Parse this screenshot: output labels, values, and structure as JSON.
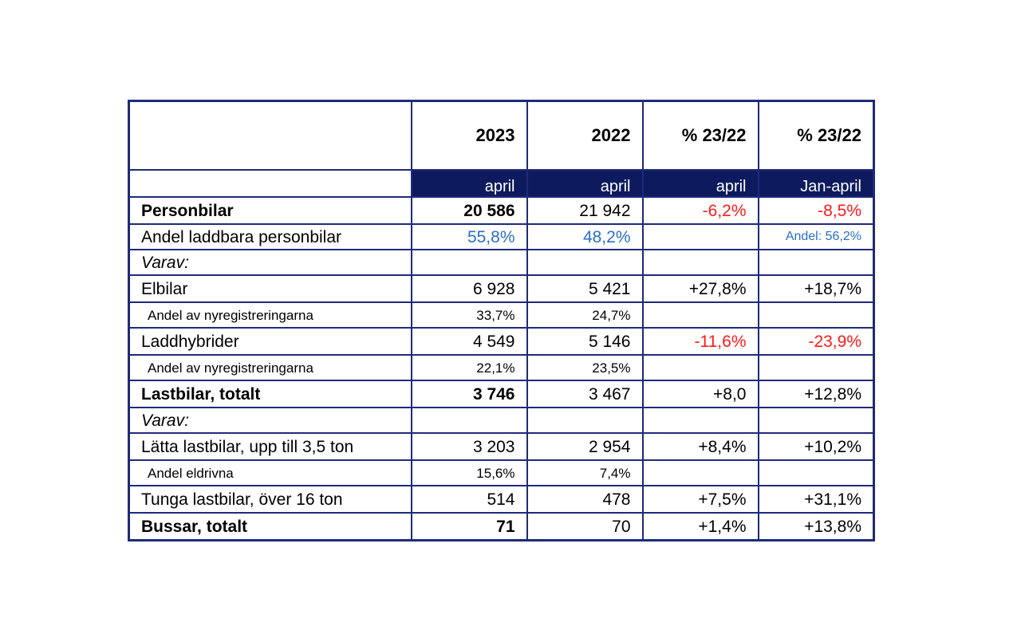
{
  "table": {
    "header": {
      "years": [
        "2023",
        "2022",
        "% 23/22",
        "% 23/22"
      ],
      "periods": [
        "april",
        "april",
        "april",
        "Jan-april"
      ]
    },
    "rows": {
      "personbilar": {
        "label": "Personbilar",
        "v2023": "20 586",
        "v2022": "21 942",
        "pct_april": "-6,2%",
        "pct_jan_april": "-8,5%"
      },
      "andel_laddbara": {
        "label": "Andel laddbara personbilar",
        "v2023": "55,8%",
        "v2022": "48,2%",
        "pct_april": "",
        "pct_jan_april": "Andel: 56,2%"
      },
      "varav1": {
        "label": "Varav:"
      },
      "elbilar": {
        "label": "Elbilar",
        "v2023": "6 928",
        "v2022": "5 421",
        "pct_april": "+27,8%",
        "pct_jan_april": "+18,7%"
      },
      "elbilar_andel": {
        "label": "Andel av nyregistreringarna",
        "v2023": "33,7%",
        "v2022": "24,7%"
      },
      "laddhybrider": {
        "label": "Laddhybrider",
        "v2023": "4 549",
        "v2022": "5 146",
        "pct_april": "-11,6%",
        "pct_jan_april": "-23,9%"
      },
      "laddhybrider_andel": {
        "label": "Andel av nyregistreringarna",
        "v2023": "22,1%",
        "v2022": "23,5%"
      },
      "lastbilar": {
        "label": "Lastbilar, totalt",
        "v2023": "3 746",
        "v2022": "3 467",
        "pct_april": "+8,0",
        "pct_jan_april": "+12,8%"
      },
      "varav2": {
        "label": "Varav:"
      },
      "latta": {
        "label": "Lätta lastbilar, upp till 3,5 ton",
        "v2023": "3 203",
        "v2022": "2 954",
        "pct_april": "+8,4%",
        "pct_jan_april": "+10,2%"
      },
      "latta_andel": {
        "label": "Andel eldrivna",
        "v2023": "15,6%",
        "v2022": "7,4%"
      },
      "tunga": {
        "label": "Tunga lastbilar, över 16 ton",
        "v2023": "514",
        "v2022": "478",
        "pct_april": "+7,5%",
        "pct_jan_april": "+31,1%"
      },
      "bussar": {
        "label": "Bussar, totalt",
        "v2023": "71",
        "v2022": "70",
        "pct_april": "+1,4%",
        "pct_jan_april": "+13,8%"
      }
    }
  },
  "colors": {
    "border": "#1f2a7a",
    "header_band": "#0d1b5e",
    "negative": "#ff1a1a",
    "share": "#2a6fc9"
  }
}
